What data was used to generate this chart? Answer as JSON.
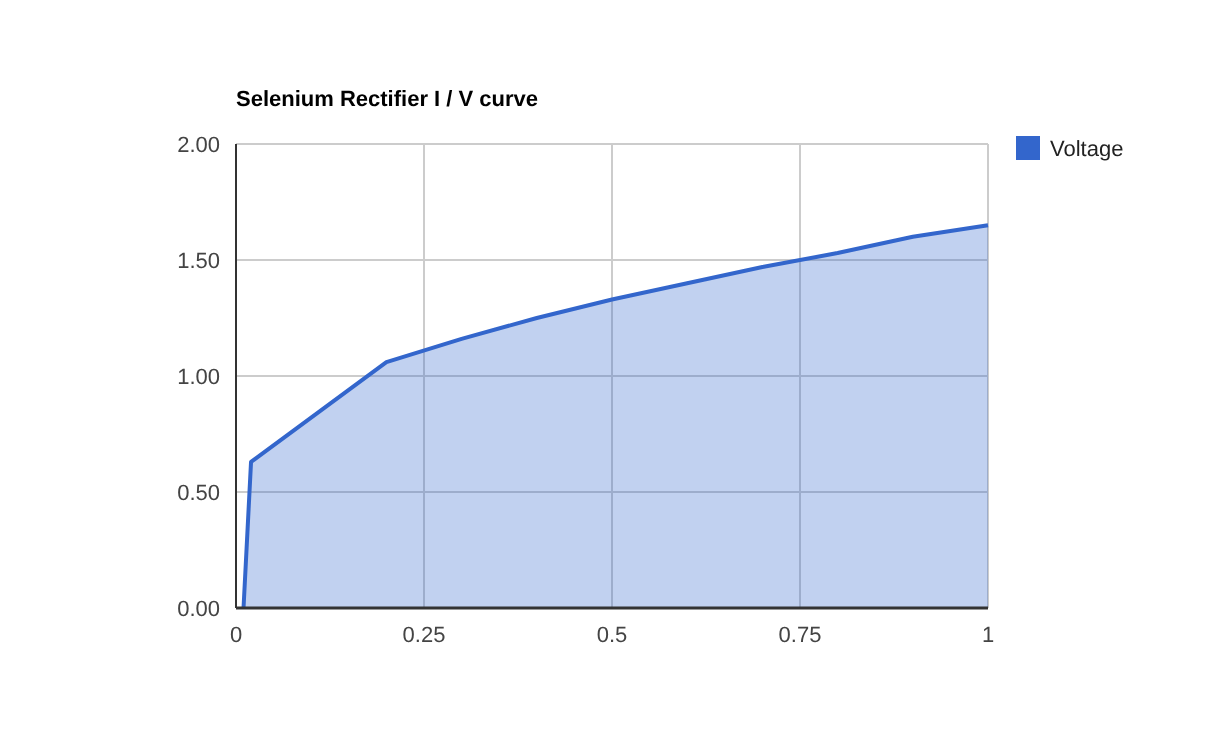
{
  "chart_data": {
    "type": "area",
    "title": "Selenium Rectifier I / V curve",
    "x": [
      0.01,
      0.02,
      0.2,
      0.3,
      0.4,
      0.5,
      0.6,
      0.7,
      0.8,
      0.9,
      1.0
    ],
    "series": [
      {
        "name": "Voltage",
        "color": "#3366cc",
        "values": [
          0,
          0.63,
          1.06,
          1.16,
          1.25,
          1.33,
          1.4,
          1.47,
          1.53,
          1.6,
          1.65
        ]
      }
    ],
    "xlim": [
      0,
      1
    ],
    "xticks": [
      0,
      0.25,
      0.5,
      0.75,
      1
    ],
    "ylim": [
      0,
      2
    ],
    "yticks": [
      {
        "value": 0,
        "label": "0.00"
      },
      {
        "value": 0.5,
        "label": "0.50"
      },
      {
        "value": 1,
        "label": "1.00"
      },
      {
        "value": 1.5,
        "label": "1.50"
      },
      {
        "value": 2,
        "label": "2.00"
      }
    ],
    "grid": true,
    "legend": "right"
  }
}
